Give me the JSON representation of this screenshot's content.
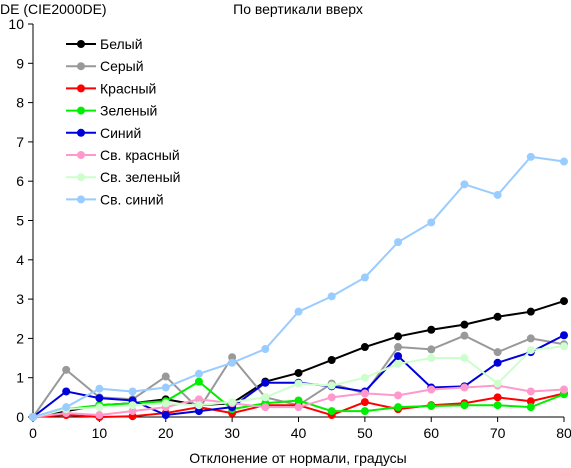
{
  "chart_data": {
    "type": "line",
    "title": "По вертикали вверх",
    "ylabel": "DE (CIE2000DE)",
    "xlabel": "Отклонение от нормали, градусы",
    "x": [
      0,
      5,
      10,
      15,
      20,
      25,
      30,
      35,
      40,
      45,
      50,
      55,
      60,
      65,
      70,
      75,
      80
    ],
    "xlim": [
      0,
      80
    ],
    "ylim": [
      0,
      10
    ],
    "xticks": [
      "0",
      "10",
      "20",
      "30",
      "40",
      "50",
      "60",
      "70",
      "80"
    ],
    "yticks": [
      "0",
      "1",
      "2",
      "3",
      "4",
      "5",
      "6",
      "7",
      "8",
      "9",
      "10"
    ],
    "grid": false,
    "legend_position": "top-left",
    "series": [
      {
        "name": "Белый",
        "color": "#000000",
        "values": [
          0,
          0.15,
          0.3,
          0.35,
          0.45,
          0.3,
          0.35,
          0.9,
          1.12,
          1.45,
          1.78,
          2.05,
          2.22,
          2.35,
          2.55,
          2.68,
          2.95
        ]
      },
      {
        "name": "Серый",
        "color": "#999999",
        "values": [
          0,
          1.2,
          0.5,
          0.45,
          1.03,
          0.2,
          1.52,
          0.5,
          0.3,
          0.85,
          0.6,
          1.78,
          1.72,
          2.07,
          1.65,
          2.0,
          1.85
        ]
      },
      {
        "name": "Красный",
        "color": "#ff0000",
        "values": [
          0,
          0.05,
          0,
          0.02,
          0.1,
          0.25,
          0.1,
          0.3,
          0.3,
          0.05,
          0.38,
          0.2,
          0.3,
          0.35,
          0.5,
          0.4,
          0.6
        ]
      },
      {
        "name": "Зеленый",
        "color": "#00ee00",
        "values": [
          0,
          0.2,
          0.3,
          0.35,
          0.4,
          0.9,
          0.2,
          0.35,
          0.42,
          0.15,
          0.15,
          0.25,
          0.28,
          0.3,
          0.3,
          0.25,
          0.58
        ]
      },
      {
        "name": "Синий",
        "color": "#0000dd",
        "values": [
          0,
          0.65,
          0.48,
          0.42,
          0.05,
          0.15,
          0.25,
          0.87,
          0.87,
          0.78,
          0.65,
          1.55,
          0.75,
          0.78,
          1.38,
          1.65,
          2.08
        ]
      },
      {
        "name": "Св. красный",
        "color": "#ff99cc",
        "values": [
          0,
          0.1,
          0.05,
          0.15,
          0.25,
          0.45,
          0.35,
          0.25,
          0.25,
          0.5,
          0.6,
          0.55,
          0.7,
          0.75,
          0.8,
          0.65,
          0.7
        ]
      },
      {
        "name": "Св. зеленый",
        "color": "#ccffcc",
        "values": [
          0,
          0.2,
          0.25,
          0.3,
          0.35,
          0.3,
          0.38,
          0.5,
          0.85,
          0.8,
          1.0,
          1.35,
          1.5,
          1.5,
          0.85,
          1.7,
          1.8
        ]
      },
      {
        "name": "Св. синий",
        "color": "#99ccff",
        "values": [
          0,
          0.25,
          0.72,
          0.65,
          0.75,
          1.1,
          1.38,
          1.73,
          2.68,
          3.07,
          3.55,
          4.45,
          4.95,
          5.92,
          5.65,
          6.62,
          6.5
        ]
      }
    ]
  }
}
